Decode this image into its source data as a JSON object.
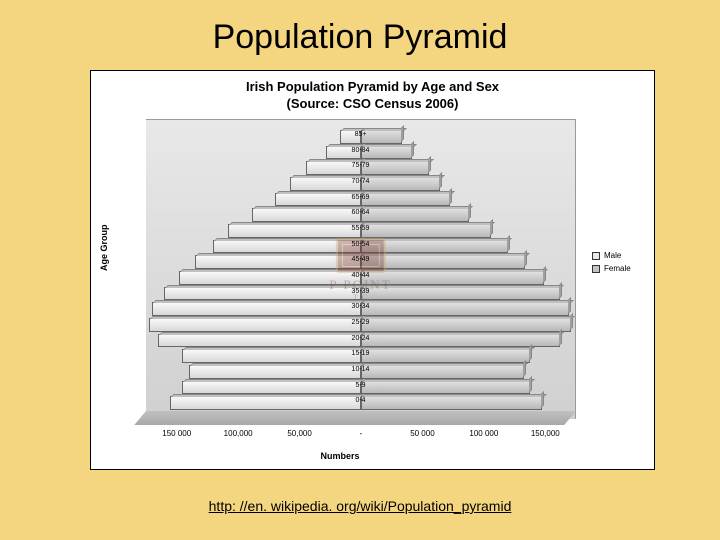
{
  "slide": {
    "title": "Population Pyramid",
    "background_color": "#f5d680",
    "link_text": "http: //en. wikipedia. org/wiki/Population_pyramid",
    "link_href": "http://en.wikipedia.org/wiki/Population_pyramid"
  },
  "chart": {
    "type": "population-pyramid",
    "title_line1": "Irish Population Pyramid by Age and Sex",
    "title_line2": "(Source: CSO Census 2006)",
    "title_fontsize": 13,
    "y_axis_label": "Age Group",
    "x_axis_label": "Numbers",
    "x_max": 175000,
    "x_ticks": [
      {
        "pos": -150000,
        "label": "150 000"
      },
      {
        "pos": -100000,
        "label": "100,000"
      },
      {
        "pos": -50000,
        "label": "50,000"
      },
      {
        "pos": 0,
        "label": "-"
      },
      {
        "pos": 50000,
        "label": "50 000"
      },
      {
        "pos": 100000,
        "label": "100 000"
      },
      {
        "pos": 150000,
        "label": "150,000"
      }
    ],
    "legend": [
      {
        "label": "Male",
        "color": "#e8e8e8"
      },
      {
        "label": "Female",
        "color": "#c4c4c4"
      }
    ],
    "male_color": "#e8e8e8",
    "female_color": "#c4c4c4",
    "background_gradient": [
      "#e8e8e8",
      "#d0d0d0"
    ],
    "age_groups": [
      {
        "label": "85+",
        "male": 17000,
        "female": 34000
      },
      {
        "label": "80-84",
        "male": 28000,
        "female": 42000
      },
      {
        "label": "75-79",
        "male": 44000,
        "female": 56000
      },
      {
        "label": "70-74",
        "male": 57000,
        "female": 65000
      },
      {
        "label": "65-69",
        "male": 70000,
        "female": 73000
      },
      {
        "label": "60-64",
        "male": 88000,
        "female": 88000
      },
      {
        "label": "55-59",
        "male": 108000,
        "female": 106000
      },
      {
        "label": "50-54",
        "male": 120000,
        "female": 120000
      },
      {
        "label": "45-49",
        "male": 135000,
        "female": 134000
      },
      {
        "label": "40-44",
        "male": 148000,
        "female": 149000
      },
      {
        "label": "35-39",
        "male": 160000,
        "female": 162000
      },
      {
        "label": "30-34",
        "male": 170000,
        "female": 170000
      },
      {
        "label": "25-29",
        "male": 172000,
        "female": 171000
      },
      {
        "label": "20-24",
        "male": 165000,
        "female": 162000
      },
      {
        "label": "15-19",
        "male": 145000,
        "female": 138000
      },
      {
        "label": "10-14",
        "male": 140000,
        "female": 133000
      },
      {
        "label": "5-9",
        "male": 145000,
        "female": 138000
      },
      {
        "label": "0-4",
        "male": 155000,
        "female": 148000
      }
    ]
  },
  "watermark": {
    "line1": "P        POINT",
    "line2": "T           C"
  }
}
